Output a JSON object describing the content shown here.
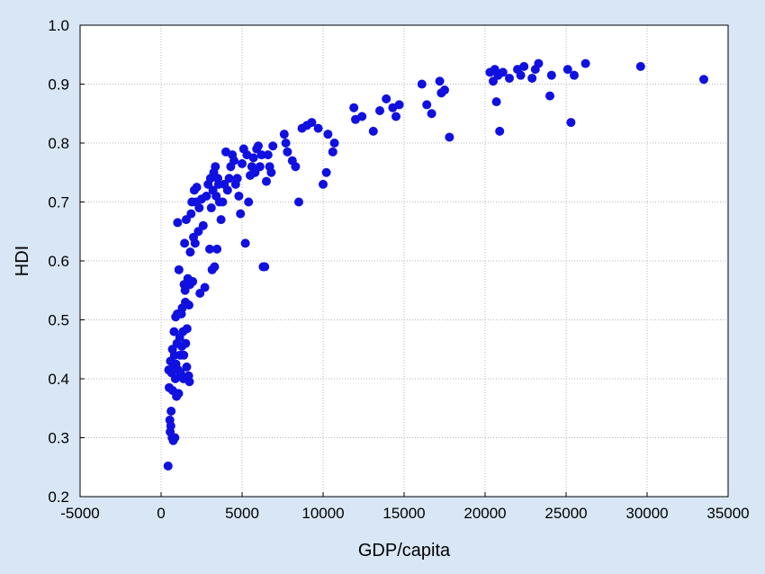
{
  "chart_data": {
    "type": "scatter",
    "title": "",
    "xlabel": "GDP/capita",
    "ylabel": "HDI",
    "xlim": [
      -5000,
      35000
    ],
    "ylim": [
      0.2,
      1.0
    ],
    "xticks": [
      -5000,
      0,
      5000,
      10000,
      15000,
      20000,
      25000,
      30000,
      35000
    ],
    "yticks": [
      0.2,
      0.3,
      0.4,
      0.5,
      0.6,
      0.7,
      0.8,
      0.9,
      1.0
    ],
    "xtick_labels": [
      "-5000",
      "0",
      "5000",
      "10000",
      "15000",
      "20000",
      "25000",
      "30000",
      "35000"
    ],
    "ytick_labels": [
      "0.2",
      "0.3",
      "0.4",
      "0.5",
      "0.6",
      "0.7",
      "0.8",
      "0.9",
      "1.0"
    ],
    "grid": true,
    "marker_color": "#1010e0",
    "background_color": "#d9e6f6",
    "plot_background_color": "#ffffff",
    "points": [
      [
        430,
        0.252
      ],
      [
        470,
        0.415
      ],
      [
        500,
        0.385
      ],
      [
        540,
        0.33
      ],
      [
        560,
        0.31
      ],
      [
        580,
        0.43
      ],
      [
        600,
        0.32
      ],
      [
        620,
        0.345
      ],
      [
        650,
        0.41
      ],
      [
        680,
        0.3
      ],
      [
        700,
        0.45
      ],
      [
        720,
        0.38
      ],
      [
        750,
        0.295
      ],
      [
        780,
        0.42
      ],
      [
        800,
        0.48
      ],
      [
        820,
        0.44
      ],
      [
        850,
        0.3
      ],
      [
        880,
        0.4
      ],
      [
        900,
        0.505
      ],
      [
        920,
        0.425
      ],
      [
        950,
        0.37
      ],
      [
        980,
        0.46
      ],
      [
        1000,
        0.51
      ],
      [
        1020,
        0.665
      ],
      [
        1050,
        0.415
      ],
      [
        1080,
        0.375
      ],
      [
        1100,
        0.585
      ],
      [
        1150,
        0.47
      ],
      [
        1180,
        0.44
      ],
      [
        1200,
        0.41
      ],
      [
        1250,
        0.51
      ],
      [
        1280,
        0.455
      ],
      [
        1300,
        0.52
      ],
      [
        1350,
        0.48
      ],
      [
        1380,
        0.4
      ],
      [
        1400,
        0.44
      ],
      [
        1420,
        0.56
      ],
      [
        1450,
        0.63
      ],
      [
        1480,
        0.55
      ],
      [
        1500,
        0.53
      ],
      [
        1520,
        0.46
      ],
      [
        1550,
        0.67
      ],
      [
        1580,
        0.42
      ],
      [
        1600,
        0.485
      ],
      [
        1650,
        0.57
      ],
      [
        1700,
        0.405
      ],
      [
        1720,
        0.525
      ],
      [
        1750,
        0.395
      ],
      [
        1780,
        0.56
      ],
      [
        1800,
        0.615
      ],
      [
        1850,
        0.68
      ],
      [
        1900,
        0.7
      ],
      [
        1950,
        0.565
      ],
      [
        2000,
        0.64
      ],
      [
        2050,
        0.72
      ],
      [
        2100,
        0.63
      ],
      [
        2150,
        0.7
      ],
      [
        2200,
        0.725
      ],
      [
        2300,
        0.65
      ],
      [
        2350,
        0.69
      ],
      [
        2400,
        0.545
      ],
      [
        2500,
        0.705
      ],
      [
        2600,
        0.66
      ],
      [
        2700,
        0.555
      ],
      [
        2800,
        0.71
      ],
      [
        2900,
        0.73
      ],
      [
        3000,
        0.62
      ],
      [
        3050,
        0.74
      ],
      [
        3100,
        0.69
      ],
      [
        3150,
        0.585
      ],
      [
        3200,
        0.72
      ],
      [
        3250,
        0.75
      ],
      [
        3300,
        0.59
      ],
      [
        3350,
        0.76
      ],
      [
        3400,
        0.71
      ],
      [
        3450,
        0.62
      ],
      [
        3500,
        0.74
      ],
      [
        3550,
        0.73
      ],
      [
        3600,
        0.7
      ],
      [
        3700,
        0.67
      ],
      [
        3800,
        0.7
      ],
      [
        3900,
        0.73
      ],
      [
        4000,
        0.785
      ],
      [
        4100,
        0.72
      ],
      [
        4200,
        0.74
      ],
      [
        4300,
        0.76
      ],
      [
        4400,
        0.78
      ],
      [
        4500,
        0.77
      ],
      [
        4600,
        0.73
      ],
      [
        4700,
        0.74
      ],
      [
        4800,
        0.71
      ],
      [
        4900,
        0.68
      ],
      [
        5000,
        0.765
      ],
      [
        5100,
        0.79
      ],
      [
        5200,
        0.63
      ],
      [
        5300,
        0.78
      ],
      [
        5400,
        0.7
      ],
      [
        5500,
        0.745
      ],
      [
        5600,
        0.76
      ],
      [
        5700,
        0.775
      ],
      [
        5800,
        0.75
      ],
      [
        5900,
        0.79
      ],
      [
        6000,
        0.795
      ],
      [
        6100,
        0.76
      ],
      [
        6200,
        0.78
      ],
      [
        6300,
        0.59
      ],
      [
        6400,
        0.59
      ],
      [
        6500,
        0.735
      ],
      [
        6600,
        0.78
      ],
      [
        6700,
        0.76
      ],
      [
        6800,
        0.75
      ],
      [
        6900,
        0.795
      ],
      [
        7600,
        0.815
      ],
      [
        7700,
        0.8
      ],
      [
        7800,
        0.785
      ],
      [
        8100,
        0.77
      ],
      [
        8300,
        0.76
      ],
      [
        8500,
        0.7
      ],
      [
        8700,
        0.825
      ],
      [
        9000,
        0.83
      ],
      [
        9300,
        0.835
      ],
      [
        9700,
        0.825
      ],
      [
        10000,
        0.73
      ],
      [
        10200,
        0.75
      ],
      [
        10300,
        0.815
      ],
      [
        10600,
        0.785
      ],
      [
        10700,
        0.8
      ],
      [
        11900,
        0.86
      ],
      [
        12000,
        0.84
      ],
      [
        12400,
        0.845
      ],
      [
        13100,
        0.82
      ],
      [
        13500,
        0.855
      ],
      [
        13900,
        0.875
      ],
      [
        14300,
        0.86
      ],
      [
        14500,
        0.845
      ],
      [
        14700,
        0.865
      ],
      [
        16100,
        0.9
      ],
      [
        16400,
        0.865
      ],
      [
        16700,
        0.85
      ],
      [
        17200,
        0.905
      ],
      [
        17300,
        0.885
      ],
      [
        17500,
        0.89
      ],
      [
        17800,
        0.81
      ],
      [
        20300,
        0.92
      ],
      [
        20500,
        0.905
      ],
      [
        20600,
        0.925
      ],
      [
        20700,
        0.87
      ],
      [
        20800,
        0.915
      ],
      [
        20900,
        0.82
      ],
      [
        21100,
        0.92
      ],
      [
        21500,
        0.91
      ],
      [
        22000,
        0.925
      ],
      [
        22200,
        0.915
      ],
      [
        22400,
        0.93
      ],
      [
        22900,
        0.91
      ],
      [
        23100,
        0.925
      ],
      [
        23300,
        0.935
      ],
      [
        24000,
        0.88
      ],
      [
        24100,
        0.915
      ],
      [
        25100,
        0.925
      ],
      [
        25300,
        0.835
      ],
      [
        25500,
        0.915
      ],
      [
        26200,
        0.935
      ],
      [
        29600,
        0.93
      ],
      [
        33500,
        0.908
      ]
    ]
  }
}
